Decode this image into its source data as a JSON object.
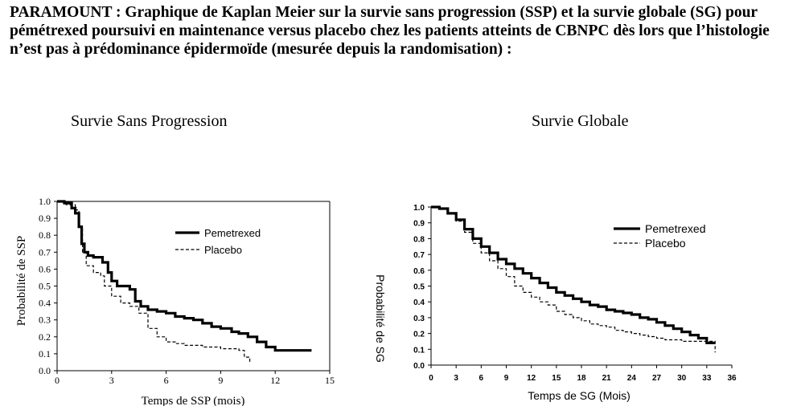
{
  "heading": "PARAMOUNT : Graphique de Kaplan Meier sur la survie sans progression (SSP) et la survie globale (SG) pour pémétrexed poursuivi en maintenance versus placebo chez les patients atteints de CBNPC dès lors que l’histologie n’est pas à prédominance épidermoïde (mesurée depuis la randomisation) :",
  "chart_data": [
    {
      "type": "line",
      "title": "Survie Sans Progression",
      "xlabel": "Temps de SSP (mois)",
      "ylabel": "Probabilité de SSP",
      "xlim": [
        0,
        15
      ],
      "ylim": [
        0,
        1.0
      ],
      "xticks": [
        0,
        3,
        6,
        9,
        12,
        15
      ],
      "yticks": [
        0.0,
        0.1,
        0.2,
        0.3,
        0.4,
        0.5,
        0.6,
        0.7,
        0.8,
        0.9,
        1.0
      ],
      "ytick_labels": [
        "0.0",
        "0.1",
        "0.2",
        "0.3",
        "0.4",
        "0.5",
        "0.6",
        "0.7",
        "0.8",
        "0.9",
        "1.0"
      ],
      "legend_position": "top-right",
      "series": [
        {
          "name": "Pemetrexed",
          "style": "solid",
          "x": [
            0,
            0.4,
            0.8,
            1.0,
            1.2,
            1.35,
            1.5,
            1.7,
            2.0,
            2.5,
            2.8,
            3.0,
            3.3,
            4.0,
            4.3,
            4.6,
            5.0,
            5.5,
            6.0,
            6.5,
            7.0,
            7.5,
            8.0,
            8.5,
            9.0,
            9.6,
            10.0,
            10.5,
            11.0,
            11.5,
            12.0,
            13.0,
            14.0
          ],
          "y": [
            1.0,
            0.99,
            0.96,
            0.93,
            0.85,
            0.75,
            0.7,
            0.68,
            0.67,
            0.64,
            0.58,
            0.53,
            0.5,
            0.48,
            0.41,
            0.38,
            0.36,
            0.35,
            0.34,
            0.32,
            0.31,
            0.3,
            0.28,
            0.26,
            0.25,
            0.23,
            0.22,
            0.2,
            0.17,
            0.14,
            0.12,
            0.12,
            0.12
          ]
        },
        {
          "name": "Placebo",
          "style": "dashed",
          "x": [
            0,
            0.5,
            1.0,
            1.2,
            1.4,
            1.6,
            2.0,
            2.4,
            2.6,
            3.0,
            3.5,
            4.0,
            4.5,
            5.0,
            5.5,
            6.0,
            6.5,
            7.0,
            8.0,
            9.0,
            10.0,
            10.3,
            10.6
          ],
          "y": [
            1.0,
            0.98,
            0.95,
            0.85,
            0.7,
            0.62,
            0.58,
            0.56,
            0.5,
            0.44,
            0.4,
            0.38,
            0.34,
            0.25,
            0.2,
            0.17,
            0.16,
            0.15,
            0.14,
            0.13,
            0.12,
            0.08,
            0.05
          ]
        }
      ]
    },
    {
      "type": "line",
      "title": "Survie Globale",
      "xlabel": "Temps de SG (Mois)",
      "ylabel": "Probabilité de SG",
      "xlim": [
        0,
        36
      ],
      "ylim": [
        0,
        1.0
      ],
      "xticks": [
        0,
        3,
        6,
        9,
        12,
        15,
        18,
        21,
        24,
        27,
        30,
        33,
        36
      ],
      "yticks": [
        0.0,
        0.1,
        0.2,
        0.3,
        0.4,
        0.5,
        0.6,
        0.7,
        0.8,
        0.9,
        1.0
      ],
      "ytick_labels": [
        "0.0",
        "0.1",
        "0.2",
        "0.3",
        "0.4",
        "0.5",
        "0.6",
        "0.7",
        "0.8",
        "0.9",
        "1.0"
      ],
      "legend_position": "top-right",
      "series": [
        {
          "name": "Pemetrexed",
          "style": "solid",
          "x": [
            0,
            1,
            2,
            3,
            4,
            5,
            6,
            7,
            8,
            9,
            10,
            11,
            12,
            13,
            14,
            15,
            16,
            17,
            18,
            19,
            20,
            21,
            22,
            23,
            24,
            25,
            26,
            27,
            28,
            29,
            30,
            31,
            32,
            33,
            34
          ],
          "y": [
            1.0,
            0.99,
            0.96,
            0.92,
            0.86,
            0.8,
            0.75,
            0.71,
            0.67,
            0.64,
            0.61,
            0.58,
            0.55,
            0.52,
            0.49,
            0.46,
            0.44,
            0.42,
            0.4,
            0.38,
            0.37,
            0.35,
            0.34,
            0.33,
            0.32,
            0.3,
            0.29,
            0.27,
            0.25,
            0.23,
            0.21,
            0.19,
            0.17,
            0.14,
            0.14
          ]
        },
        {
          "name": "Placebo",
          "style": "dashed",
          "x": [
            0,
            1,
            2,
            3,
            4,
            5,
            6,
            7,
            8,
            9,
            10,
            11,
            12,
            13,
            14,
            15,
            16,
            17,
            18,
            19,
            20,
            21,
            22,
            23,
            24,
            25,
            26,
            27,
            28,
            29,
            30,
            31,
            32,
            33,
            34
          ],
          "y": [
            1.0,
            0.99,
            0.96,
            0.91,
            0.84,
            0.77,
            0.71,
            0.66,
            0.61,
            0.56,
            0.5,
            0.46,
            0.43,
            0.4,
            0.38,
            0.34,
            0.32,
            0.3,
            0.28,
            0.26,
            0.25,
            0.24,
            0.22,
            0.21,
            0.2,
            0.19,
            0.18,
            0.17,
            0.16,
            0.16,
            0.15,
            0.15,
            0.15,
            0.15,
            0.08
          ]
        }
      ]
    }
  ]
}
